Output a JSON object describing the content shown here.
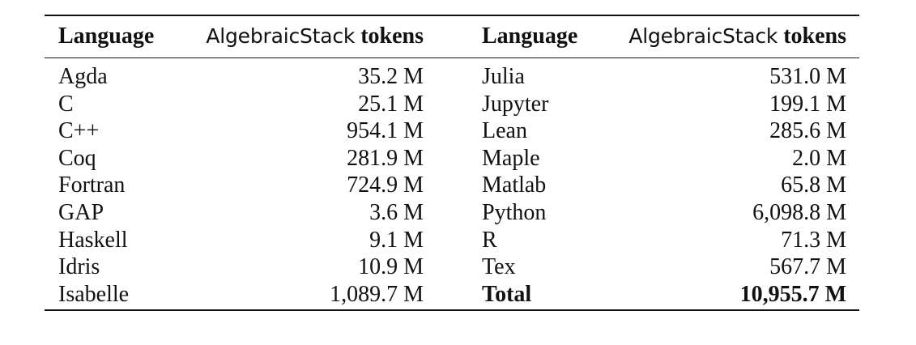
{
  "table": {
    "headers": {
      "language": "Language",
      "tokens_prefix": "AlgebraicStack",
      "tokens_suffix": "tokens"
    },
    "rows": [
      {
        "lang_left": "Agda",
        "tok_left": "35.2 M",
        "lang_right": "Julia",
        "tok_right": "531.0 M"
      },
      {
        "lang_left": "C",
        "tok_left": "25.1 M",
        "lang_right": "Jupyter",
        "tok_right": "199.1 M"
      },
      {
        "lang_left": "C++",
        "tok_left": "954.1 M",
        "lang_right": "Lean",
        "tok_right": "285.6 M"
      },
      {
        "lang_left": "Coq",
        "tok_left": "281.9 M",
        "lang_right": "Maple",
        "tok_right": "2.0 M"
      },
      {
        "lang_left": "Fortran",
        "tok_left": "724.9 M",
        "lang_right": "Matlab",
        "tok_right": "65.8 M"
      },
      {
        "lang_left": "GAP",
        "tok_left": "3.6 M",
        "lang_right": "Python",
        "tok_right": "6,098.8 M"
      },
      {
        "lang_left": "Haskell",
        "tok_left": "9.1 M",
        "lang_right": "R",
        "tok_right": "71.3 M"
      },
      {
        "lang_left": "Idris",
        "tok_left": "10.9 M",
        "lang_right": "Tex",
        "tok_right": "567.7 M"
      },
      {
        "lang_left": "Isabelle",
        "tok_left": "1,089.7 M",
        "lang_right": "Total",
        "tok_right": "10,955.7 M"
      }
    ]
  }
}
